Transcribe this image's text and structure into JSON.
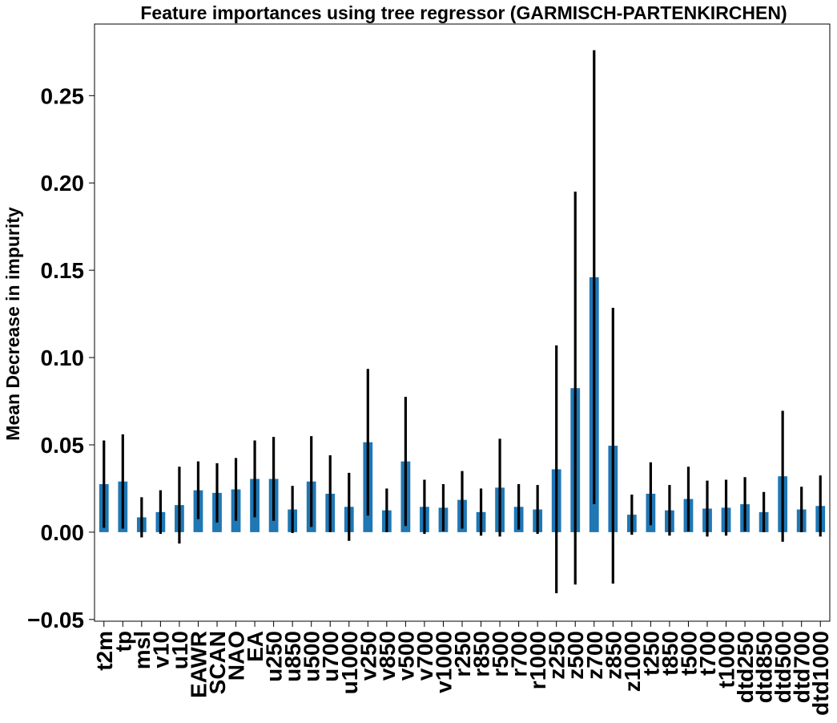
{
  "chart_data": {
    "type": "bar",
    "title": "Feature importances using tree regressor (GARMISCH-PARTENKIRCHEN)",
    "xlabel": "",
    "ylabel": "Mean Decrease in impurity",
    "ylim": [
      -0.051,
      0.291
    ],
    "yticks": [
      "−0.05",
      "0.00",
      "0.05",
      "0.10",
      "0.15",
      "0.20",
      "0.25"
    ],
    "ytick_values": [
      -0.05,
      0.0,
      0.05,
      0.1,
      0.15,
      0.2,
      0.25
    ],
    "grid": false,
    "bar_color": "#1f77b4",
    "error_color": "#000000",
    "categories": [
      "t2m",
      "tp",
      "msl",
      "v10",
      "u10",
      "EAWR",
      "SCAN",
      "NAO",
      "EA",
      "u250",
      "u850",
      "u500",
      "u700",
      "u1000",
      "v250",
      "v850",
      "v500",
      "v700",
      "v1000",
      "r250",
      "r850",
      "r500",
      "r700",
      "r1000",
      "z250",
      "z500",
      "z700",
      "z850",
      "z1000",
      "t250",
      "t850",
      "t500",
      "t700",
      "t1000",
      "dtd250",
      "dtd850",
      "dtd500",
      "dtd700",
      "dtd1000"
    ],
    "values": [
      0.0275,
      0.029,
      0.0085,
      0.0115,
      0.0155,
      0.024,
      0.0225,
      0.0245,
      0.0305,
      0.0305,
      0.013,
      0.029,
      0.022,
      0.0145,
      0.0515,
      0.0125,
      0.0405,
      0.0145,
      0.014,
      0.0185,
      0.0115,
      0.0255,
      0.0145,
      0.013,
      0.036,
      0.0825,
      0.146,
      0.0495,
      0.01,
      0.022,
      0.0125,
      0.019,
      0.0135,
      0.014,
      0.016,
      0.0115,
      0.032,
      0.013,
      0.015
    ],
    "errors": [
      0.025,
      0.027,
      0.0115,
      0.0125,
      0.022,
      0.0165,
      0.017,
      0.018,
      0.022,
      0.024,
      0.0135,
      0.026,
      0.022,
      0.0195,
      0.042,
      0.0125,
      0.037,
      0.0155,
      0.0135,
      0.0165,
      0.0135,
      0.028,
      0.013,
      0.014,
      0.071,
      0.1125,
      0.13,
      0.079,
      0.0115,
      0.018,
      0.0145,
      0.0185,
      0.016,
      0.016,
      0.0155,
      0.0115,
      0.0375,
      0.013,
      0.0175
    ]
  }
}
